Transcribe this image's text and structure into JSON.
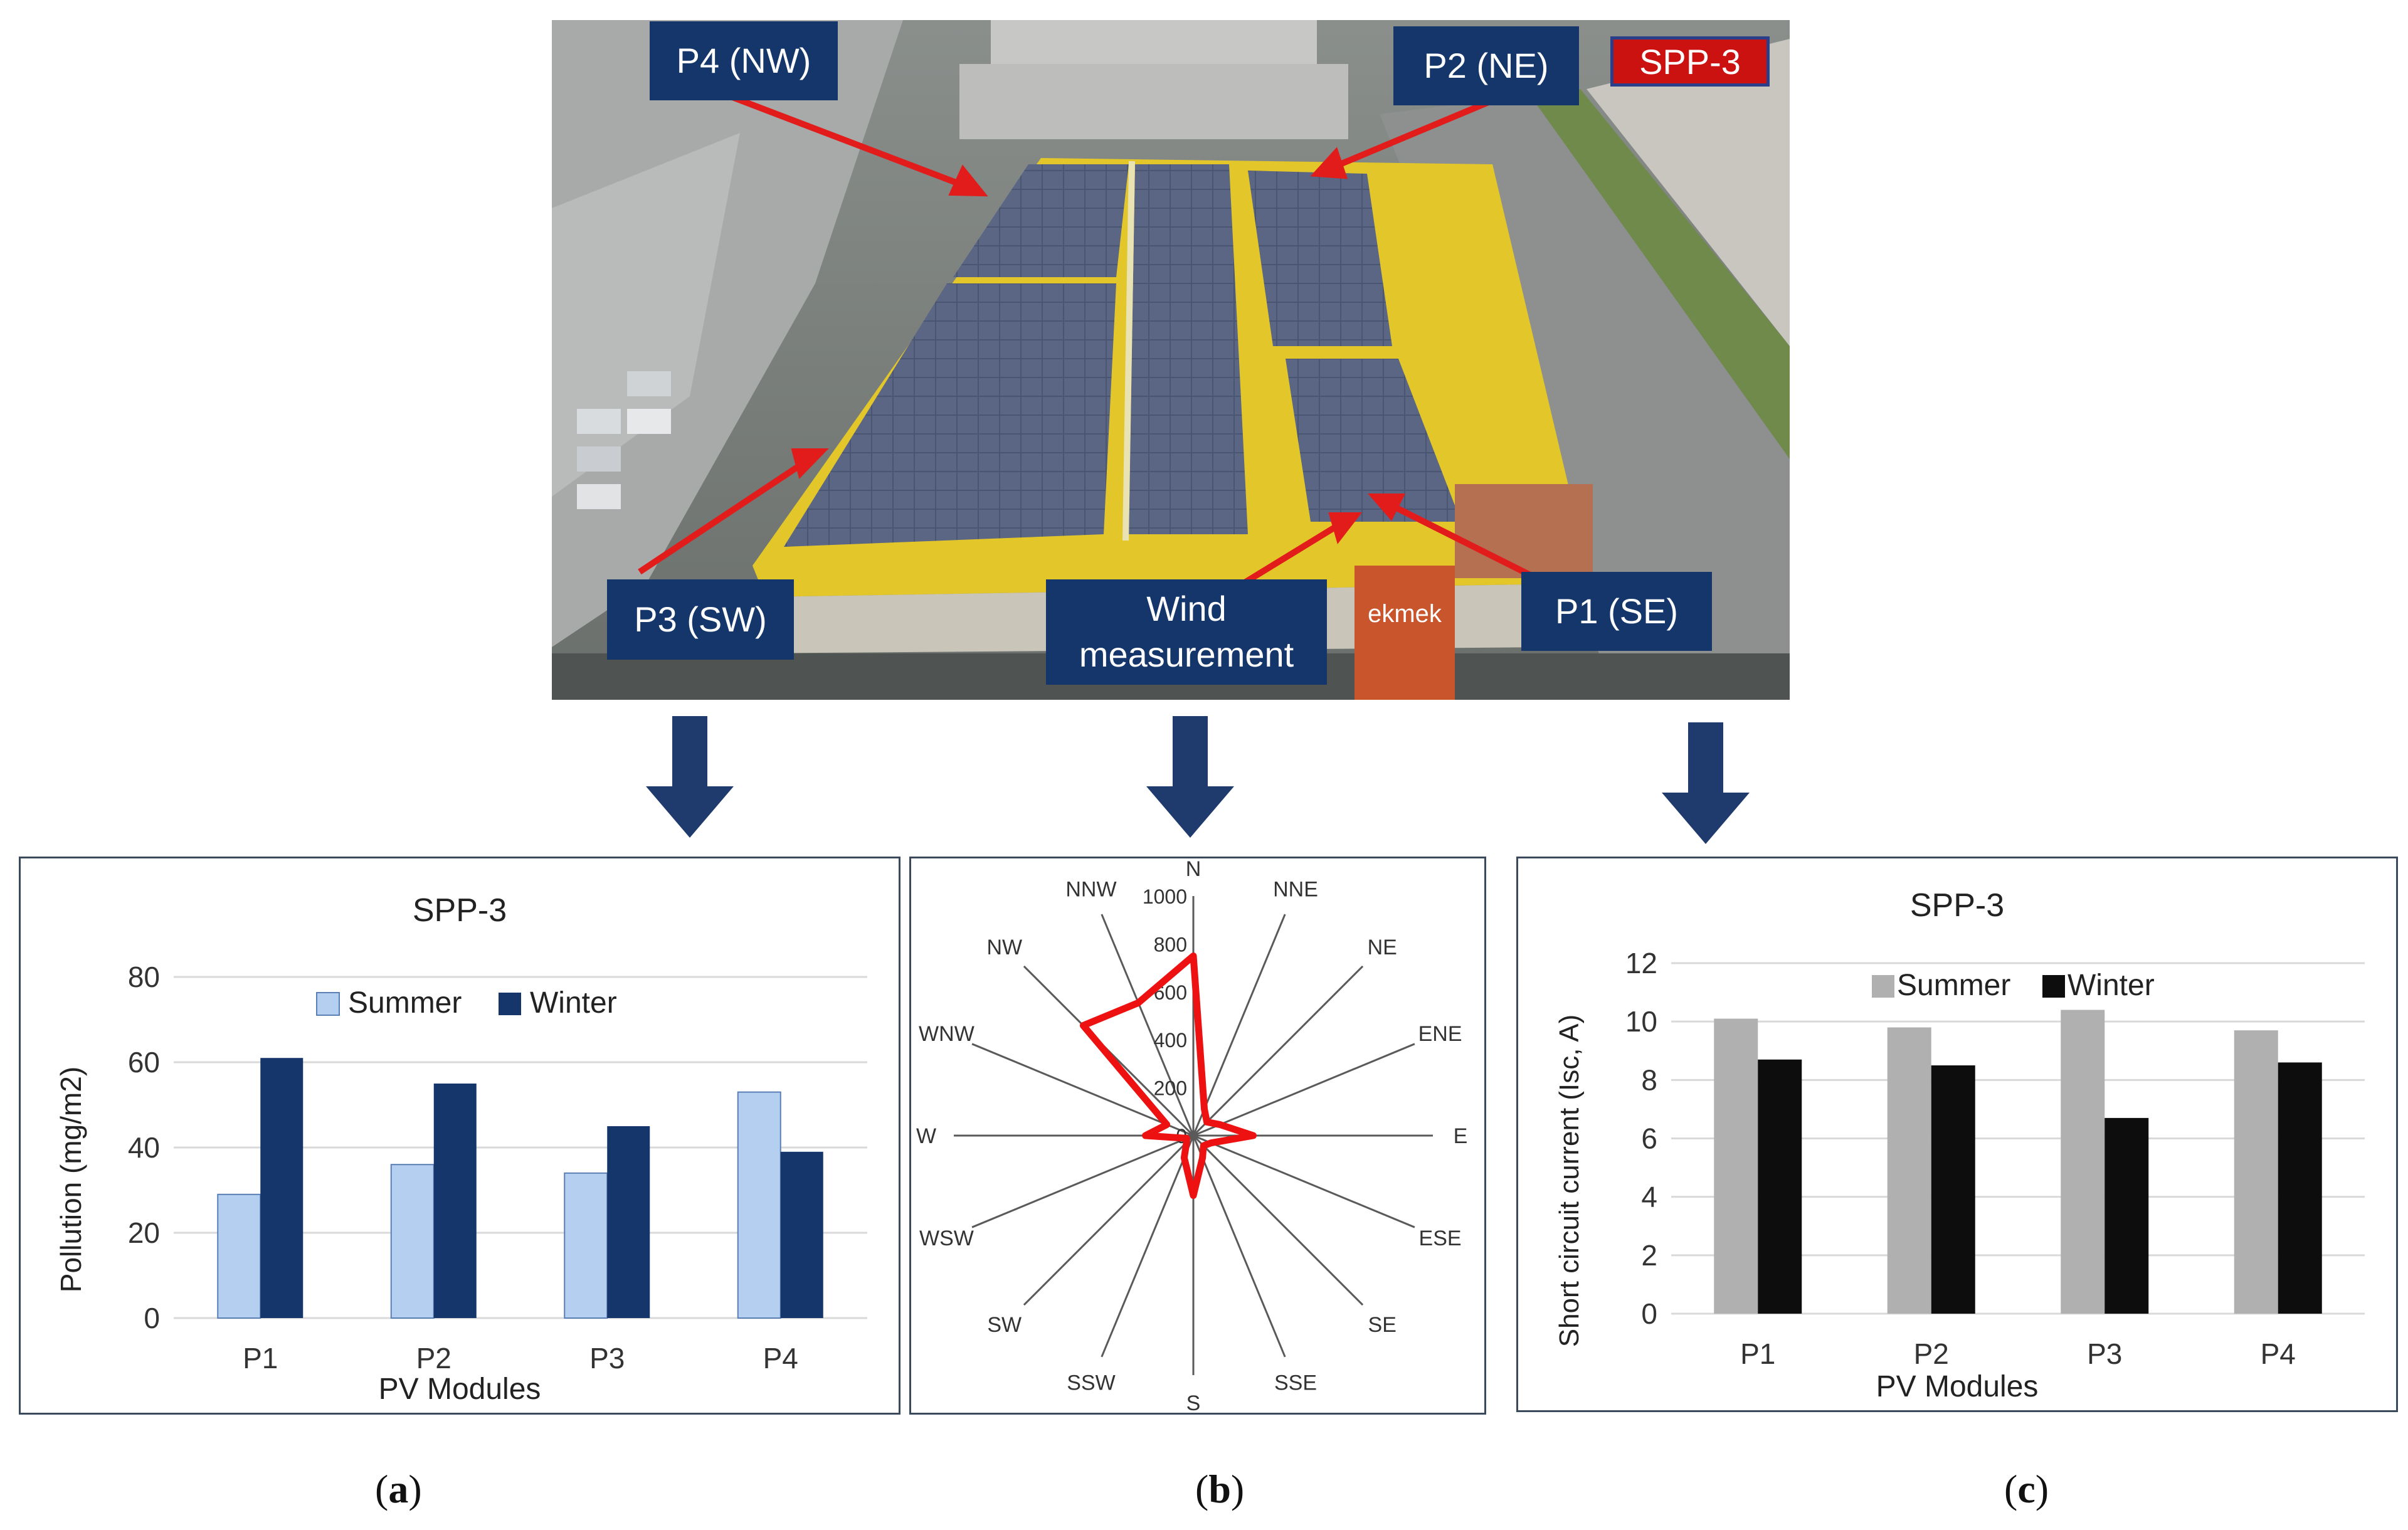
{
  "photo": {
    "callouts": {
      "p4": "P4 (NW)",
      "p2": "P2 (NE)",
      "p3": "P3 (SW)",
      "wind_line1": "Wind",
      "wind_line2": "measurement",
      "p1": "P1 (SE)"
    },
    "badge": "SPP-3",
    "building_sign": "ekmek"
  },
  "captions": {
    "a": "a",
    "b": "b",
    "c": "c"
  },
  "colors": {
    "callout_bg": "#14366b",
    "badge_bg": "#cc1111",
    "arrow": "#e21b1b",
    "flow_arrow": "#1f3b6e",
    "summer_a": "#b4cff0",
    "winter_a": "#14366b",
    "summer_c": "#b0b0b0",
    "winter_c": "#0d0d0d",
    "wind_line": "#ee1111"
  },
  "chart_data": [
    {
      "type": "bar",
      "title": "SPP-3",
      "categories": [
        "P1",
        "P2",
        "P3",
        "P4"
      ],
      "series": [
        {
          "name": "Summer",
          "values": [
            29,
            36,
            34,
            53
          ]
        },
        {
          "name": "Winter",
          "values": [
            61,
            55,
            45,
            39
          ]
        }
      ],
      "xlabel": "PV Modules",
      "ylabel": "Pollution (mg/m2)",
      "ylim": [
        0,
        80
      ],
      "yticks": [
        "0",
        "20",
        "40",
        "60",
        "80"
      ],
      "grid": true,
      "legend": "top"
    },
    {
      "type": "radar",
      "directions": [
        "N",
        "NNE",
        "NE",
        "ENE",
        "E",
        "ESE",
        "SE",
        "SSE",
        "S",
        "SSW",
        "SW",
        "WSW",
        "W",
        "WNW",
        "NW",
        "NNW"
      ],
      "values": [
        750,
        120,
        80,
        120,
        250,
        80,
        60,
        100,
        250,
        100,
        40,
        30,
        200,
        120,
        650,
        600
      ],
      "rlim": [
        0,
        1000
      ],
      "rticks": [
        "0",
        "200",
        "400",
        "600",
        "800",
        "1000"
      ]
    },
    {
      "type": "bar",
      "title": "SPP-3",
      "categories": [
        "P1",
        "P2",
        "P3",
        "P4"
      ],
      "series": [
        {
          "name": "Summer",
          "values": [
            10.1,
            9.8,
            10.4,
            9.7
          ]
        },
        {
          "name": "Winter",
          "values": [
            8.7,
            8.5,
            6.7,
            8.6
          ]
        }
      ],
      "xlabel": "PV Modules",
      "ylabel": "Short circuit current (Isc, A)",
      "ylim": [
        0,
        12
      ],
      "yticks": [
        "0",
        "2",
        "4",
        "6",
        "8",
        "10",
        "12"
      ],
      "grid": true,
      "legend": "top"
    }
  ]
}
